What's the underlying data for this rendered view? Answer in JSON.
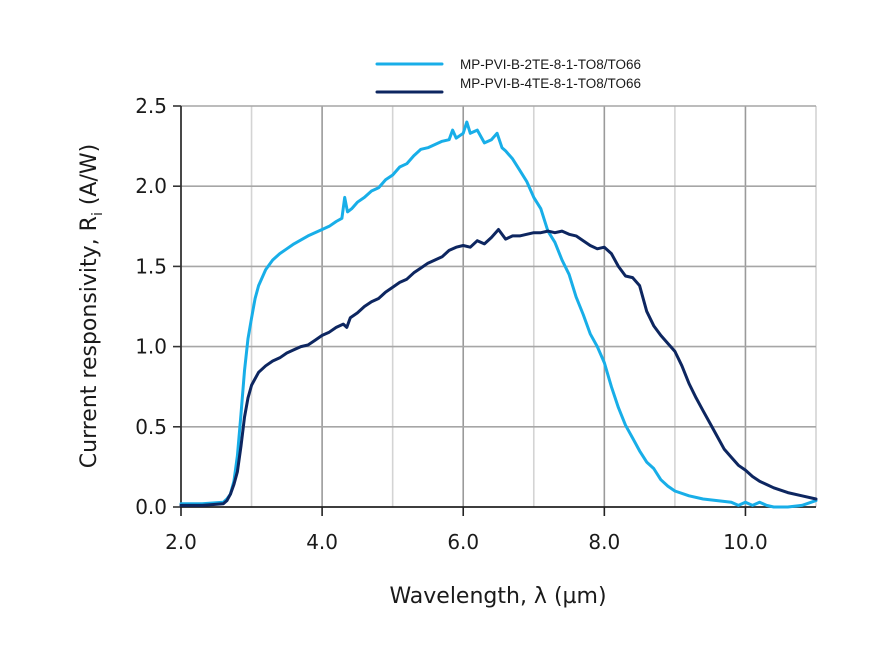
{
  "chart_data": {
    "type": "line",
    "title": "",
    "xlabel": "Wavelength, λ (µm)",
    "ylabel_main": "Current responsivity, R",
    "ylabel_sub": "i",
    "ylabel_unit": " (A/W)",
    "xlim": [
      2.0,
      11.0
    ],
    "ylim": [
      0.0,
      2.5
    ],
    "x_ticks": [
      2.0,
      4.0,
      6.0,
      8.0,
      10.0
    ],
    "x_tick_labels": [
      "2.0",
      "4.0",
      "6.0",
      "8.0",
      "10.0"
    ],
    "x_minor_gridlines": [
      3.0,
      5.0,
      7.0,
      9.0,
      11.0
    ],
    "y_ticks": [
      0.0,
      0.5,
      1.0,
      1.5,
      2.0,
      2.5
    ],
    "y_tick_labels": [
      "0.0",
      "0.5",
      "1.0",
      "1.5",
      "2.0",
      "2.5"
    ],
    "grid": true,
    "legend_position": "top-right",
    "series": [
      {
        "name": "MP-PVI-B-2TE-8-1-TO8/TO66",
        "color": "#18aee8",
        "x": [
          2.0,
          2.3,
          2.6,
          2.65,
          2.7,
          2.75,
          2.8,
          2.85,
          2.9,
          2.95,
          3.0,
          3.05,
          3.1,
          3.2,
          3.3,
          3.4,
          3.5,
          3.6,
          3.8,
          4.0,
          4.1,
          4.2,
          4.28,
          4.32,
          4.36,
          4.42,
          4.5,
          4.6,
          4.7,
          4.8,
          4.9,
          5.0,
          5.1,
          5.2,
          5.3,
          5.4,
          5.5,
          5.6,
          5.7,
          5.8,
          5.85,
          5.9,
          6.0,
          6.05,
          6.1,
          6.2,
          6.3,
          6.4,
          6.48,
          6.55,
          6.6,
          6.7,
          6.8,
          6.9,
          7.0,
          7.1,
          7.2,
          7.3,
          7.4,
          7.5,
          7.6,
          7.7,
          7.8,
          7.9,
          8.0,
          8.1,
          8.2,
          8.3,
          8.4,
          8.5,
          8.6,
          8.7,
          8.8,
          8.9,
          9.0,
          9.2,
          9.4,
          9.6,
          9.8,
          9.9,
          10.0,
          10.1,
          10.2,
          10.3,
          10.4,
          10.6,
          10.8,
          11.0
        ],
        "y": [
          0.02,
          0.02,
          0.03,
          0.05,
          0.08,
          0.16,
          0.32,
          0.58,
          0.85,
          1.05,
          1.18,
          1.3,
          1.38,
          1.48,
          1.54,
          1.58,
          1.61,
          1.64,
          1.69,
          1.73,
          1.75,
          1.78,
          1.8,
          1.93,
          1.84,
          1.86,
          1.9,
          1.93,
          1.97,
          1.99,
          2.04,
          2.07,
          2.12,
          2.14,
          2.19,
          2.23,
          2.24,
          2.26,
          2.28,
          2.29,
          2.35,
          2.3,
          2.33,
          2.4,
          2.33,
          2.35,
          2.27,
          2.29,
          2.33,
          2.24,
          2.22,
          2.17,
          2.1,
          2.03,
          1.93,
          1.86,
          1.72,
          1.65,
          1.54,
          1.45,
          1.31,
          1.2,
          1.08,
          1.0,
          0.9,
          0.75,
          0.62,
          0.51,
          0.43,
          0.35,
          0.28,
          0.24,
          0.17,
          0.13,
          0.1,
          0.07,
          0.05,
          0.04,
          0.03,
          0.01,
          0.03,
          0.01,
          0.03,
          0.01,
          0.0,
          0.0,
          0.01,
          0.04
        ]
      },
      {
        "name": "MP-PVI-B-4TE-8-1-TO8/TO66",
        "color": "#0d2660",
        "x": [
          2.0,
          2.3,
          2.6,
          2.65,
          2.7,
          2.75,
          2.8,
          2.85,
          2.9,
          2.95,
          3.0,
          3.1,
          3.2,
          3.3,
          3.4,
          3.5,
          3.6,
          3.7,
          3.8,
          3.9,
          4.0,
          4.1,
          4.2,
          4.3,
          4.35,
          4.4,
          4.5,
          4.6,
          4.7,
          4.8,
          4.9,
          5.0,
          5.1,
          5.2,
          5.3,
          5.4,
          5.5,
          5.6,
          5.7,
          5.8,
          5.9,
          6.0,
          6.1,
          6.2,
          6.3,
          6.4,
          6.5,
          6.6,
          6.7,
          6.8,
          6.9,
          7.0,
          7.1,
          7.2,
          7.3,
          7.4,
          7.5,
          7.6,
          7.7,
          7.8,
          7.9,
          8.0,
          8.1,
          8.2,
          8.3,
          8.4,
          8.5,
          8.6,
          8.7,
          8.8,
          8.9,
          9.0,
          9.1,
          9.2,
          9.3,
          9.4,
          9.5,
          9.6,
          9.7,
          9.8,
          9.9,
          10.0,
          10.1,
          10.2,
          10.3,
          10.4,
          10.6,
          10.8,
          11.0
        ],
        "y": [
          0.01,
          0.01,
          0.02,
          0.04,
          0.08,
          0.14,
          0.22,
          0.38,
          0.56,
          0.68,
          0.76,
          0.84,
          0.88,
          0.91,
          0.93,
          0.96,
          0.98,
          1.0,
          1.01,
          1.04,
          1.07,
          1.09,
          1.12,
          1.14,
          1.12,
          1.18,
          1.21,
          1.25,
          1.28,
          1.3,
          1.34,
          1.37,
          1.4,
          1.42,
          1.46,
          1.49,
          1.52,
          1.54,
          1.56,
          1.6,
          1.62,
          1.63,
          1.62,
          1.66,
          1.64,
          1.68,
          1.73,
          1.67,
          1.69,
          1.69,
          1.7,
          1.71,
          1.71,
          1.72,
          1.71,
          1.72,
          1.7,
          1.69,
          1.66,
          1.63,
          1.61,
          1.62,
          1.58,
          1.5,
          1.44,
          1.43,
          1.38,
          1.22,
          1.13,
          1.07,
          1.02,
          0.97,
          0.88,
          0.77,
          0.68,
          0.6,
          0.52,
          0.44,
          0.36,
          0.31,
          0.26,
          0.23,
          0.19,
          0.16,
          0.14,
          0.12,
          0.09,
          0.07,
          0.05
        ]
      }
    ]
  }
}
